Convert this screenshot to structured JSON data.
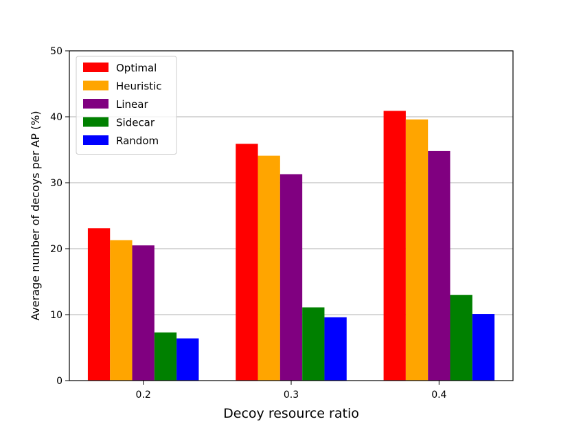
{
  "chart_data": {
    "type": "bar",
    "xlabel": "Decoy resource ratio",
    "ylabel": "Average number of decoys per AP (%)",
    "categories": [
      "0.2",
      "0.3",
      "0.4"
    ],
    "ylim": [
      0,
      50
    ],
    "yticks": [
      "0",
      "10",
      "20",
      "30",
      "40",
      "50"
    ],
    "grid": "horizontal",
    "legend_position": "top-left",
    "series": [
      {
        "name": "Optimal",
        "color": "#ff0000",
        "values": [
          23.1,
          35.9,
          40.9
        ]
      },
      {
        "name": "Heuristic",
        "color": "#ffa500",
        "values": [
          21.3,
          34.1,
          39.6
        ]
      },
      {
        "name": "Linear",
        "color": "#800080",
        "values": [
          20.5,
          31.3,
          34.8
        ]
      },
      {
        "name": "Sidecar",
        "color": "#008000",
        "values": [
          7.3,
          11.1,
          13.0
        ]
      },
      {
        "name": "Random",
        "color": "#0000ff",
        "values": [
          6.4,
          9.6,
          10.1
        ]
      }
    ]
  }
}
